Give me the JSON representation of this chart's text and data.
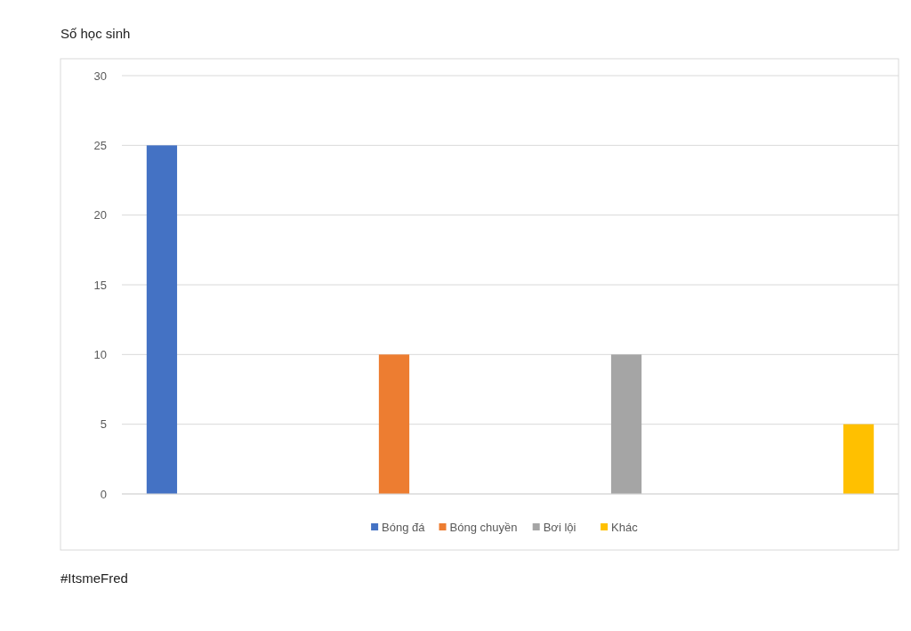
{
  "chart_data": {
    "type": "bar",
    "title": "Số học sinh",
    "categories": [
      null,
      null,
      null,
      null
    ],
    "series": [
      {
        "name": "Bóng đá",
        "color": "#4472c4",
        "values": [
          25,
          null,
          null,
          null
        ]
      },
      {
        "name": "Bóng chuyền",
        "color": "#ed7d31",
        "values": [
          null,
          10,
          null,
          null
        ]
      },
      {
        "name": "Bơi lội",
        "color": "#a5a5a5",
        "values": [
          null,
          null,
          10,
          null
        ]
      },
      {
        "name": "Khác",
        "color": "#ffc000",
        "values": [
          null,
          null,
          null,
          5
        ]
      }
    ],
    "ylim": [
      0,
      30
    ],
    "yticks": [
      0,
      5,
      10,
      15,
      20,
      25,
      30
    ],
    "grid": "y",
    "legend": "bottom",
    "annotations": [
      "#ItsmeFred"
    ]
  }
}
